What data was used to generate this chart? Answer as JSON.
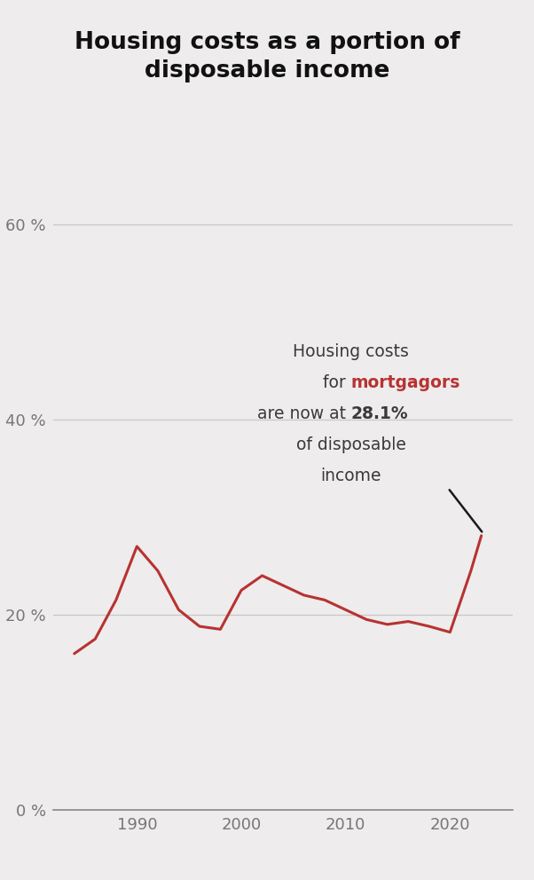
{
  "title": "Housing costs as a portion of\ndisposable income",
  "title_fontsize": 19,
  "background_color": "#eeecec",
  "line_color": "#b83232",
  "line_width": 2.2,
  "years": [
    1984,
    1986,
    1988,
    1990,
    1992,
    1994,
    1996,
    1998,
    2000,
    2002,
    2004,
    2006,
    2008,
    2010,
    2012,
    2014,
    2016,
    2018,
    2020,
    2022,
    2023
  ],
  "values": [
    16.0,
    17.5,
    21.5,
    27.0,
    24.5,
    20.5,
    18.8,
    18.5,
    22.5,
    24.0,
    23.0,
    22.0,
    21.5,
    20.5,
    19.5,
    19.0,
    19.3,
    18.8,
    18.2,
    24.5,
    28.1
  ],
  "ylim": [
    0,
    65
  ],
  "yticks": [
    0,
    20,
    40,
    60
  ],
  "ytick_labels": [
    "0 %",
    "20 %",
    "40 %",
    "60 %"
  ],
  "xlim": [
    1982,
    2026
  ],
  "xticks": [
    1990,
    2000,
    2010,
    2020
  ],
  "text_color": "#3a3a3a",
  "red_color": "#b83232",
  "grid_color": "#c8c8c8",
  "axis_color": "#888888",
  "tick_color": "#777777",
  "ann_fs": 13.5
}
